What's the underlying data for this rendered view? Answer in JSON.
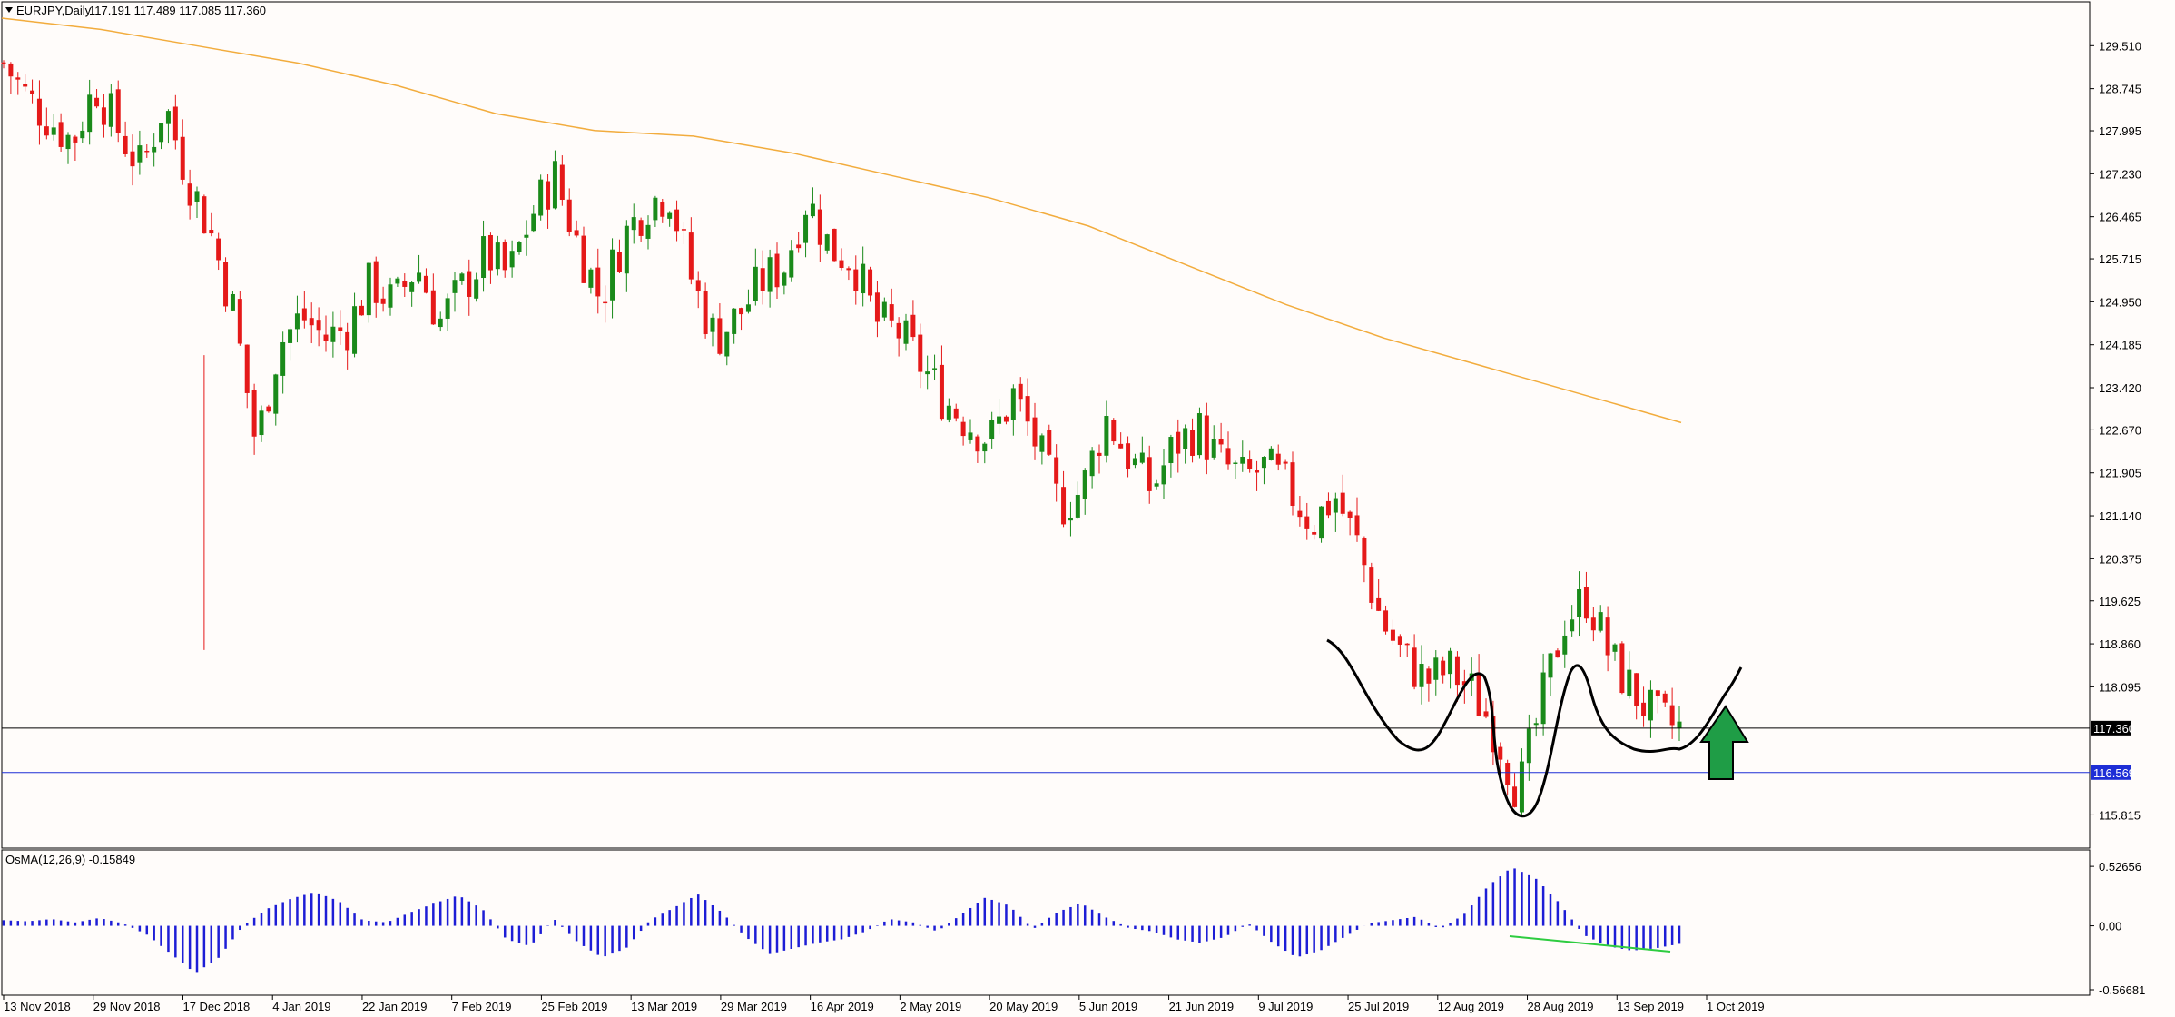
{
  "chart_data": {
    "type": "candlestick",
    "symbol_label": "EURJPY,Daily",
    "ohlc_label": "117.191 117.489 117.085 117.360",
    "osma_label": "OsMA(12,26,9) -0.15849",
    "price_ticks": [
      "129.510",
      "128.745",
      "127.995",
      "127.230",
      "126.465",
      "125.715",
      "124.950",
      "124.185",
      "123.420",
      "122.670",
      "121.905",
      "121.140",
      "120.375",
      "119.625",
      "118.860",
      "118.095",
      "117.360",
      "116.569",
      "115.815"
    ],
    "osma_ticks": [
      "0.52656",
      "0.00",
      "-0.56681"
    ],
    "date_ticks": [
      "13 Nov 2018",
      "29 Nov 2018",
      "17 Dec 2018",
      "4 Jan 2019",
      "22 Jan 2019",
      "7 Feb 2019",
      "25 Feb 2019",
      "13 Mar 2019",
      "29 Mar 2019",
      "16 Apr 2019",
      "2 May 2019",
      "20 May 2019",
      "5 Jun 2019",
      "21 Jun 2019",
      "9 Jul 2019",
      "25 Jul 2019",
      "12 Aug 2019",
      "28 Aug 2019",
      "13 Sep 2019",
      "1 Oct 2019"
    ],
    "price_range": [
      115.45,
      130.0
    ],
    "osma_range": [
      -0.56681,
      0.6
    ],
    "current_price": 117.36,
    "horizontal_level": 116.569,
    "close_path": [
      129.2,
      128.6,
      128.2,
      127.8,
      128.8,
      128.0,
      127.3,
      128.5,
      127.2,
      126.2,
      124.8,
      122.4,
      124.2,
      124.7,
      124.3,
      124.5,
      125.3,
      124.9,
      125.6,
      124.6,
      125.2,
      125.8,
      125.4,
      126.5,
      127.2,
      126.0,
      125.0,
      126.1,
      126.7,
      126.9,
      125.3,
      124.3,
      124.7,
      125.3,
      125.6,
      126.8,
      125.9,
      125.7,
      124.6,
      124.4,
      123.8,
      123.2,
      122.8,
      122.5,
      123.3,
      122.4,
      121.3,
      121.6,
      122.9,
      122.2,
      121.6,
      122.4,
      122.7,
      122.1,
      121.8,
      122.0,
      121.6,
      121.0,
      121.5,
      120.6,
      119.3,
      118.6,
      118.2,
      118.4,
      118.0,
      117.3,
      116.2,
      117.8,
      119.3,
      119.7,
      118.6,
      118.0,
      117.5,
      117.36
    ],
    "osma_path": [
      0.05,
      0.04,
      0.06,
      0.03,
      0.07,
      0.02,
      -0.08,
      -0.25,
      -0.42,
      -0.28,
      0.0,
      0.15,
      0.24,
      0.3,
      0.22,
      0.05,
      0.03,
      0.12,
      0.2,
      0.27,
      0.15,
      -0.12,
      -0.18,
      0.06,
      -0.15,
      -0.28,
      -0.2,
      0.05,
      0.16,
      0.28,
      0.12,
      -0.1,
      -0.25,
      -0.2,
      -0.15,
      -0.12,
      -0.05,
      0.06,
      0.03,
      -0.05,
      0.1,
      0.25,
      0.18,
      -0.03,
      0.12,
      0.2,
      0.08,
      -0.02,
      -0.05,
      -0.12,
      -0.15,
      -0.1,
      0.02,
      -0.15,
      -0.28,
      -0.22,
      -0.1,
      0.02,
      0.05,
      0.08,
      -0.03,
      0.1,
      0.35,
      0.52,
      0.42,
      0.2,
      -0.08,
      -0.18,
      -0.22,
      -0.2,
      -0.16
    ],
    "ma_path": [
      130.0,
      129.8,
      129.5,
      129.2,
      128.8,
      128.3,
      128.0,
      127.9,
      127.6,
      127.2,
      126.8,
      126.3,
      125.6,
      124.9,
      124.3,
      123.8,
      123.3,
      122.8
    ],
    "colors": {
      "bull": "#1a8a1a",
      "bear": "#e51919",
      "moving_average": "#f2ac3d",
      "osma": "#1d1dd6",
      "current_price_line": "#000000",
      "horizontal_level_line": "#1e2ed6",
      "divergence_line": "#2ecc40",
      "arrow": "#1f9d46"
    },
    "annotations": [
      "black hand-drawn double-bottom curve",
      "green up arrow",
      "green divergence line on OsMA"
    ]
  }
}
